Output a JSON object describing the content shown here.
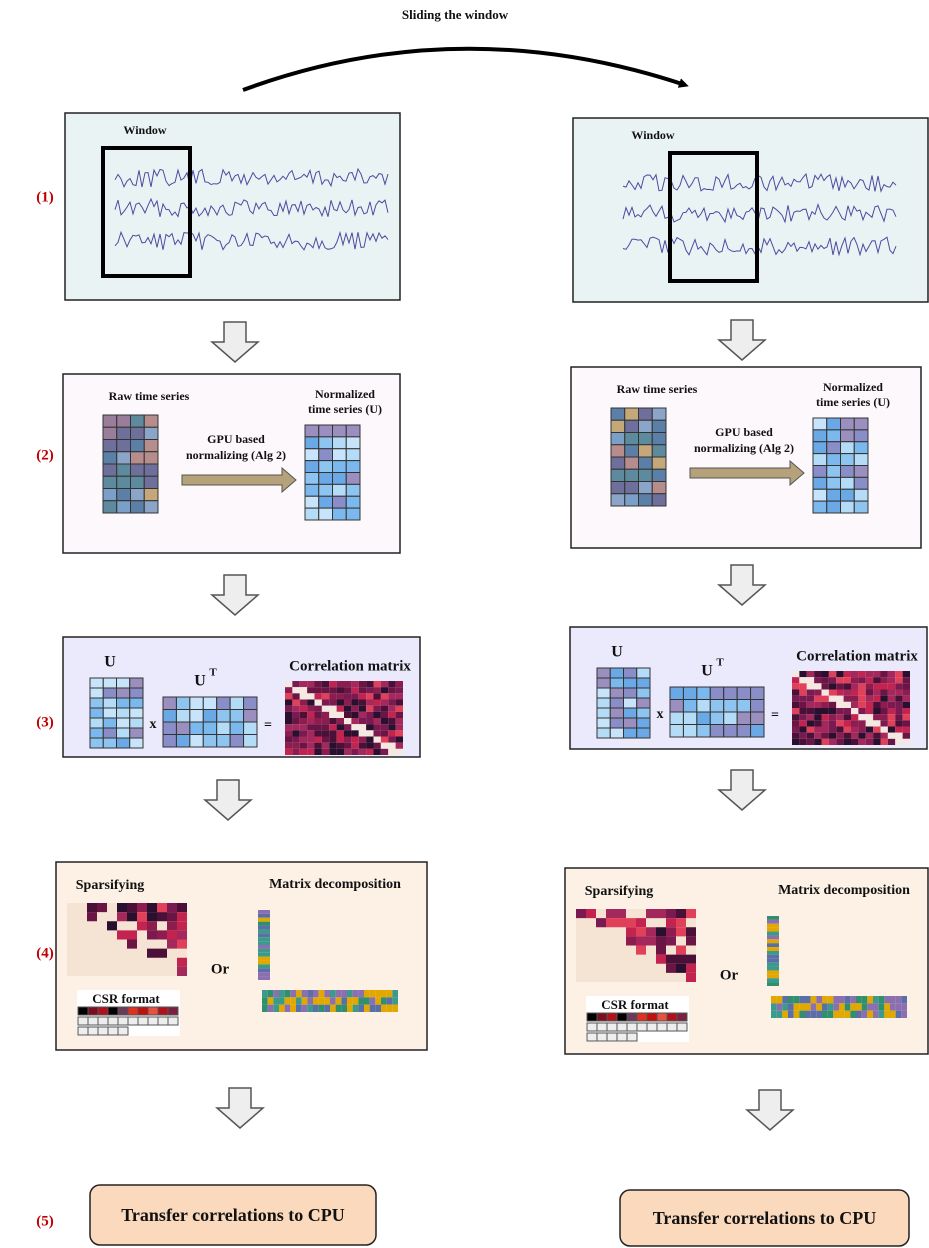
{
  "title": "Sliding the window",
  "step_labels": [
    "(1)",
    "(2)",
    "(3)",
    "(4)",
    "(5)"
  ],
  "columns": [
    {
      "window_label": "Window",
      "raw_label": "Raw time series",
      "normalized_label": [
        "Normalized",
        "time series (U)"
      ],
      "gpu_label": [
        "GPU based",
        "normalizing (Alg 2)"
      ],
      "u_label": "U",
      "ut_label": "U",
      "ut_superscript": "T",
      "times": "x",
      "equals": "=",
      "correlation_label": "Correlation matrix",
      "sparsifying_label": "Sparsifying",
      "or_label": "Or",
      "decomposition_label": "Matrix decomposition",
      "csr_label": "CSR format",
      "transfer_label": "Transfer correlations to CPU"
    },
    {
      "window_label": "Window",
      "raw_label": "Raw time series",
      "normalized_label": [
        "Normalized",
        "time series (U)"
      ],
      "gpu_label": [
        "GPU based",
        "normalizing (Alg 2)"
      ],
      "u_label": "U",
      "ut_label": "U",
      "ut_superscript": "T",
      "times": "x",
      "equals": "=",
      "correlation_label": "Correlation matrix",
      "sparsifying_label": "Sparsifying",
      "or_label": "Or",
      "decomposition_label": "Matrix decomposition",
      "csr_label": "CSR format",
      "transfer_label": "Transfer correlations to CPU"
    }
  ]
}
